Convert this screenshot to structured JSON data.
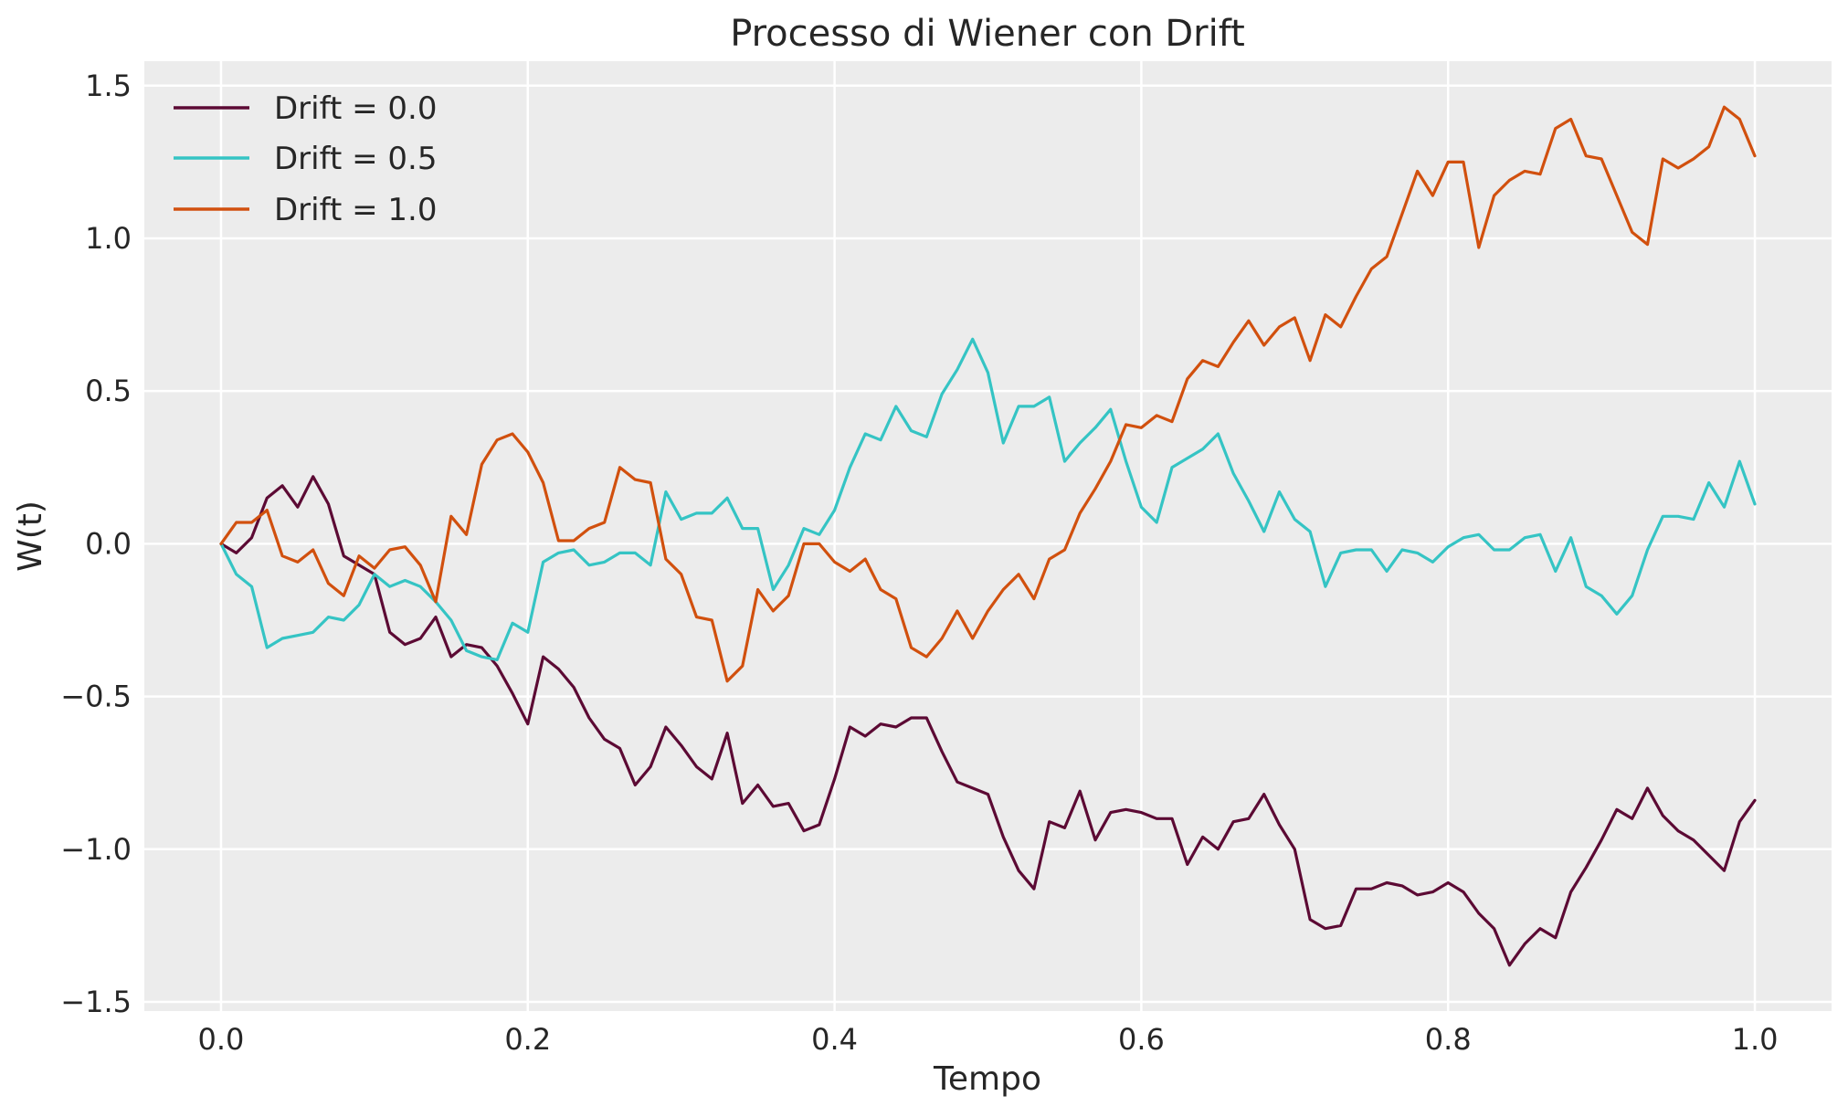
{
  "chart_data": {
    "type": "line",
    "title": "Processo di Wiener con Drift",
    "xlabel": "Tempo",
    "ylabel": "W(t)",
    "xlim": [
      -0.05,
      1.05
    ],
    "ylim": [
      -1.53,
      1.58
    ],
    "xticks": [
      0.0,
      0.2,
      0.4,
      0.6,
      0.8,
      1.0
    ],
    "xtick_labels": [
      "0.0",
      "0.2",
      "0.4",
      "0.6",
      "0.8",
      "1.0"
    ],
    "yticks": [
      -1.5,
      -1.0,
      -0.5,
      0.0,
      0.5,
      1.0,
      1.5
    ],
    "ytick_labels": [
      "−1.5",
      "−1.0",
      "−0.5",
      "0.0",
      "0.5",
      "1.0",
      "1.5"
    ],
    "grid": true,
    "legend_position": "top-left",
    "background": "#ececec",
    "x": [
      0.0,
      0.01,
      0.02,
      0.03,
      0.04,
      0.05,
      0.06,
      0.07,
      0.08,
      0.09,
      0.1,
      0.11,
      0.12,
      0.13,
      0.14,
      0.15,
      0.16,
      0.17,
      0.18,
      0.19,
      0.2,
      0.21,
      0.22,
      0.23,
      0.24,
      0.25,
      0.26,
      0.27,
      0.28,
      0.29,
      0.3,
      0.31,
      0.32,
      0.33,
      0.34,
      0.35,
      0.36,
      0.37,
      0.38,
      0.39,
      0.4,
      0.41,
      0.42,
      0.43,
      0.44,
      0.45,
      0.46,
      0.47,
      0.48,
      0.49,
      0.5,
      0.51,
      0.52,
      0.53,
      0.54,
      0.55,
      0.56,
      0.57,
      0.58,
      0.59,
      0.6,
      0.61,
      0.62,
      0.63,
      0.64,
      0.65,
      0.66,
      0.67,
      0.68,
      0.69,
      0.7,
      0.71,
      0.72,
      0.73,
      0.74,
      0.75,
      0.76,
      0.77,
      0.78,
      0.79,
      0.8,
      0.81,
      0.82,
      0.83,
      0.84,
      0.85,
      0.86,
      0.87,
      0.88,
      0.89,
      0.9,
      0.91,
      0.92,
      0.93,
      0.94,
      0.95,
      0.96,
      0.97,
      0.98,
      0.99,
      1.0
    ],
    "series": [
      {
        "name": "Drift = 0.0",
        "color": "#5c0a34",
        "values": [
          0.0,
          -0.03,
          0.02,
          0.15,
          0.19,
          0.12,
          0.22,
          0.13,
          -0.04,
          -0.07,
          -0.1,
          -0.29,
          -0.33,
          -0.31,
          -0.24,
          -0.37,
          -0.33,
          -0.34,
          -0.4,
          -0.49,
          -0.59,
          -0.37,
          -0.41,
          -0.47,
          -0.57,
          -0.64,
          -0.67,
          -0.79,
          -0.73,
          -0.6,
          -0.66,
          -0.73,
          -0.77,
          -0.62,
          -0.85,
          -0.79,
          -0.86,
          -0.85,
          -0.94,
          -0.92,
          -0.77,
          -0.6,
          -0.63,
          -0.59,
          -0.6,
          -0.57,
          -0.57,
          -0.68,
          -0.78,
          -0.8,
          -0.82,
          -0.96,
          -1.07,
          -1.13,
          -0.91,
          -0.93,
          -0.81,
          -0.97,
          -0.88,
          -0.87,
          -0.88,
          -0.9,
          -0.9,
          -1.05,
          -0.96,
          -1.0,
          -0.91,
          -0.9,
          -0.82,
          -0.92,
          -1.0,
          -1.23,
          -1.26,
          -1.25,
          -1.13,
          -1.13,
          -1.11,
          -1.12,
          -1.15,
          -1.14,
          -1.11,
          -1.14,
          -1.21,
          -1.26,
          -1.38,
          -1.31,
          -1.26,
          -1.29,
          -1.14,
          -1.06,
          -0.97,
          -0.87,
          -0.9,
          -0.8,
          -0.89,
          -0.94,
          -0.97,
          -1.02,
          -1.07,
          -0.91,
          -0.84
        ]
      },
      {
        "name": "Drift = 0.5",
        "color": "#35c4c4",
        "values": [
          0.0,
          -0.1,
          -0.14,
          -0.34,
          -0.31,
          -0.3,
          -0.29,
          -0.24,
          -0.25,
          -0.2,
          -0.1,
          -0.14,
          -0.12,
          -0.14,
          -0.19,
          -0.25,
          -0.35,
          -0.37,
          -0.38,
          -0.26,
          -0.29,
          -0.06,
          -0.03,
          -0.02,
          -0.07,
          -0.06,
          -0.03,
          -0.03,
          -0.07,
          0.17,
          0.08,
          0.1,
          0.1,
          0.15,
          0.05,
          0.05,
          -0.15,
          -0.07,
          0.05,
          0.03,
          0.11,
          0.25,
          0.36,
          0.34,
          0.45,
          0.37,
          0.35,
          0.49,
          0.57,
          0.67,
          0.56,
          0.33,
          0.45,
          0.45,
          0.48,
          0.27,
          0.33,
          0.38,
          0.44,
          0.27,
          0.12,
          0.07,
          0.25,
          0.28,
          0.31,
          0.36,
          0.23,
          0.14,
          0.04,
          0.17,
          0.08,
          0.04,
          -0.14,
          -0.03,
          -0.02,
          -0.02,
          -0.09,
          -0.02,
          -0.03,
          -0.06,
          -0.01,
          0.02,
          0.03,
          -0.02,
          -0.02,
          0.02,
          0.03,
          -0.09,
          0.02,
          -0.14,
          -0.17,
          -0.23,
          -0.17,
          -0.02,
          0.09,
          0.09,
          0.08,
          0.2,
          0.12,
          0.27,
          0.13
        ]
      },
      {
        "name": "Drift = 1.0",
        "color": "#d1500e",
        "values": [
          0.0,
          0.07,
          0.07,
          0.11,
          -0.04,
          -0.06,
          -0.02,
          -0.13,
          -0.17,
          -0.04,
          -0.08,
          -0.02,
          -0.01,
          -0.07,
          -0.19,
          0.09,
          0.03,
          0.26,
          0.34,
          0.36,
          0.3,
          0.2,
          0.01,
          0.01,
          0.05,
          0.07,
          0.25,
          0.21,
          0.2,
          -0.05,
          -0.1,
          -0.24,
          -0.25,
          -0.45,
          -0.4,
          -0.15,
          -0.22,
          -0.17,
          0.0,
          0.0,
          -0.06,
          -0.09,
          -0.05,
          -0.15,
          -0.18,
          -0.34,
          -0.37,
          -0.31,
          -0.22,
          -0.31,
          -0.22,
          -0.15,
          -0.1,
          -0.18,
          -0.05,
          -0.02,
          0.1,
          0.18,
          0.27,
          0.39,
          0.38,
          0.42,
          0.4,
          0.54,
          0.6,
          0.58,
          0.66,
          0.73,
          0.65,
          0.71,
          0.74,
          0.6,
          0.75,
          0.71,
          0.81,
          0.9,
          0.94,
          1.08,
          1.22,
          1.14,
          1.25,
          1.25,
          0.97,
          1.14,
          1.19,
          1.22,
          1.21,
          1.36,
          1.39,
          1.27,
          1.26,
          1.14,
          1.02,
          0.98,
          1.26,
          1.23,
          1.26,
          1.3,
          1.43,
          1.39,
          1.27
        ]
      }
    ]
  }
}
